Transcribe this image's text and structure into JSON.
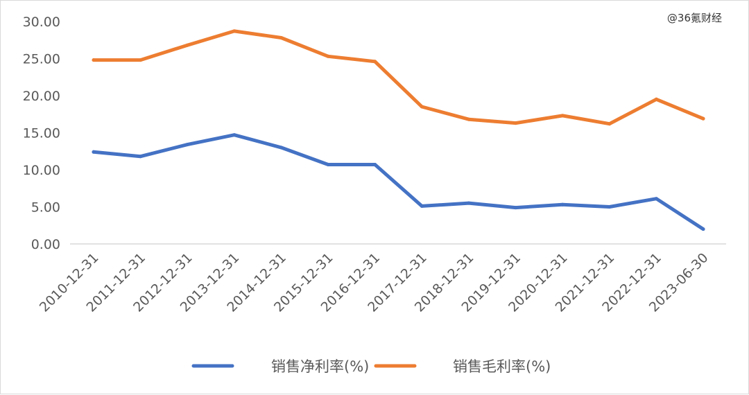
{
  "watermark": "@36氪财经",
  "chart_data": {
    "type": "line",
    "categories": [
      "2010-12-31",
      "2011-12-31",
      "2012-12-31",
      "2013-12-31",
      "2014-12-31",
      "2015-12-31",
      "2016-12-31",
      "2017-12-31",
      "2018-12-31",
      "2019-12-31",
      "2020-12-31",
      "2021-12-31",
      "2022-12-31",
      "2023-06-30"
    ],
    "y_ticks": [
      "0.00",
      "5.00",
      "10.00",
      "15.00",
      "20.00",
      "25.00",
      "30.00"
    ],
    "ylim": [
      0,
      30
    ],
    "grid": false,
    "legend_position": "bottom",
    "series": [
      {
        "name": "销售净利率(%)",
        "color": "#4472c4",
        "values": [
          12.4,
          11.8,
          13.4,
          14.7,
          13.0,
          10.7,
          10.7,
          5.1,
          5.5,
          4.9,
          5.3,
          5.0,
          6.1,
          2.0
        ]
      },
      {
        "name": "销售毛利率(%)",
        "color": "#ed7d31",
        "values": [
          24.8,
          24.8,
          26.8,
          28.7,
          27.8,
          25.3,
          24.6,
          18.5,
          16.8,
          16.3,
          17.3,
          16.2,
          19.5,
          16.9
        ]
      }
    ]
  }
}
